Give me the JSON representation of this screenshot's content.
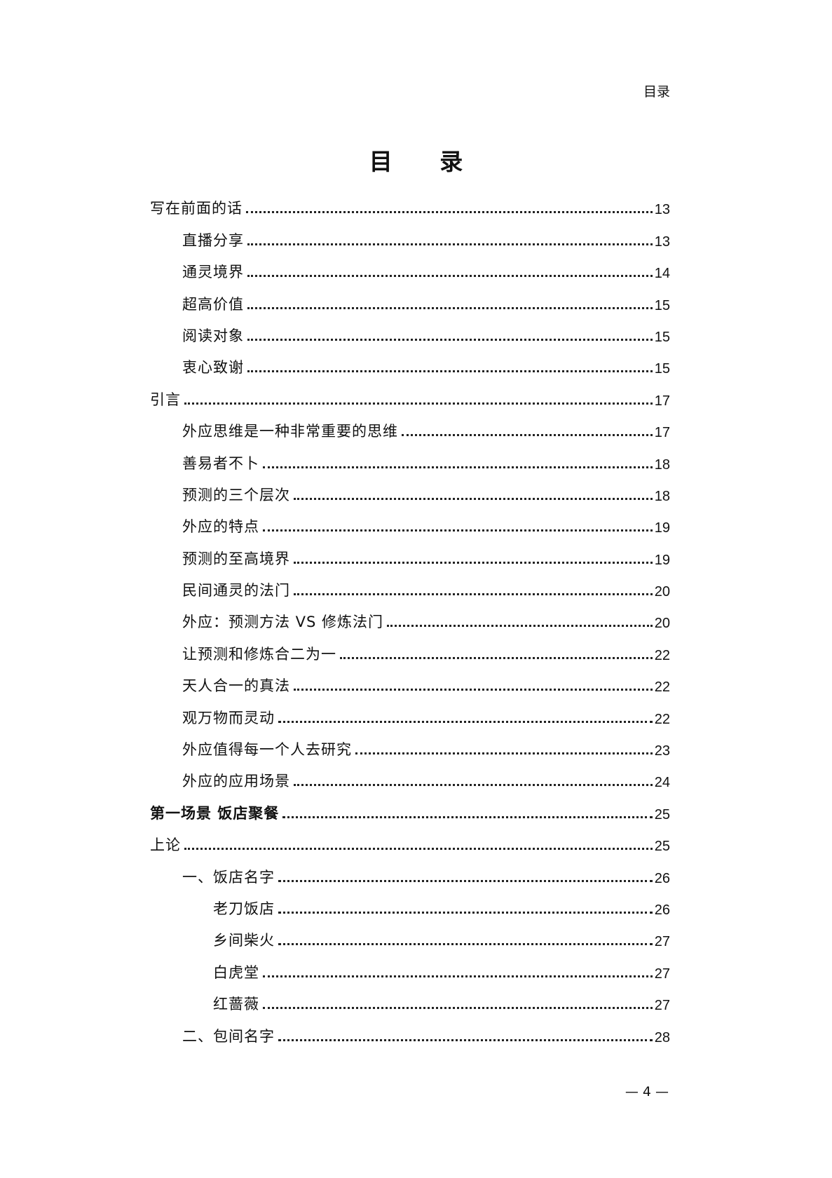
{
  "running_head": "目录",
  "title": "目 录",
  "entries": [
    {
      "label": "写在前面的话",
      "page": "13",
      "level": 0
    },
    {
      "label": "直播分享",
      "page": "13",
      "level": 1
    },
    {
      "label": "通灵境界",
      "page": "14",
      "level": 1
    },
    {
      "label": "超高价值",
      "page": "15",
      "level": 1
    },
    {
      "label": "阅读对象",
      "page": "15",
      "level": 1
    },
    {
      "label": "衷心致谢",
      "page": "15",
      "level": 1
    },
    {
      "label": "引言",
      "page": "17",
      "level": 0
    },
    {
      "label": "外应思维是一种非常重要的思维",
      "page": "17",
      "level": 1
    },
    {
      "label": "善易者不卜",
      "page": "18",
      "level": 1
    },
    {
      "label": "预测的三个层次",
      "page": "18",
      "level": 1
    },
    {
      "label": "外应的特点",
      "page": "19",
      "level": 1
    },
    {
      "label": "预测的至高境界",
      "page": "19",
      "level": 1
    },
    {
      "label": "民间通灵的法门",
      "page": "20",
      "level": 1
    },
    {
      "label": "外应：预测方法 VS 修炼法门",
      "page": "20",
      "level": 1
    },
    {
      "label": "让预测和修炼合二为一",
      "page": "22",
      "level": 1
    },
    {
      "label": "天人合一的真法",
      "page": "22",
      "level": 1
    },
    {
      "label": "观万物而灵动",
      "page": "22",
      "level": 1
    },
    {
      "label": "外应值得每一个人去研究",
      "page": "23",
      "level": 1
    },
    {
      "label": "外应的应用场景",
      "page": "24",
      "level": 1
    },
    {
      "label": "第一场景 饭店聚餐",
      "page": "25",
      "level": 0,
      "bold": true
    },
    {
      "label": "上论",
      "page": "25",
      "level": 0
    },
    {
      "label": "一、饭店名字",
      "page": "26",
      "level": 1
    },
    {
      "label": "老刀饭店",
      "page": "26",
      "level": 2
    },
    {
      "label": "乡间柴火",
      "page": "27",
      "level": 2
    },
    {
      "label": "白虎堂",
      "page": "27",
      "level": 2
    },
    {
      "label": "红蔷薇",
      "page": "27",
      "level": 2
    },
    {
      "label": "二、包间名字",
      "page": "28",
      "level": 1
    }
  ],
  "page_number": "— 4 —"
}
